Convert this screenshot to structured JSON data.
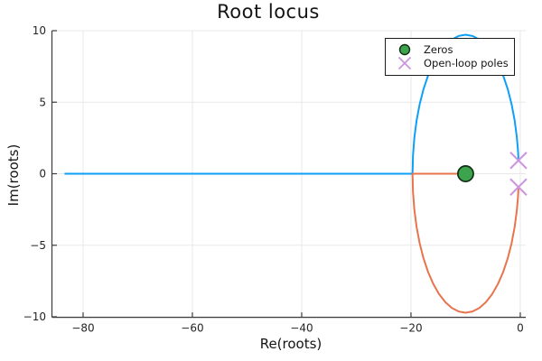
{
  "chart_data": {
    "type": "line",
    "title": "Root locus",
    "xlabel": "Re(roots)",
    "ylabel": "Im(roots)",
    "xlim": [
      -85.7,
      1.0
    ],
    "ylim": [
      -10,
      10
    ],
    "grid": true,
    "grid_color": "#e8e8e8",
    "axis_color": "#3c3c40",
    "legend_position": "top-right",
    "xticks": {
      "values": [
        -80,
        -60,
        -40,
        -20,
        0
      ],
      "labels": [
        "−80",
        "−60",
        "−40",
        "−20",
        "0"
      ]
    },
    "yticks": {
      "values": [
        -10,
        -5,
        0,
        5,
        10
      ],
      "labels": [
        "−10",
        "−5",
        "0",
        "5",
        "10"
      ]
    },
    "legend": {
      "entries": [
        {
          "label": "Zeros",
          "marker": "circle"
        },
        {
          "label": "Open-loop poles",
          "marker": "x"
        }
      ]
    },
    "annotations": {
      "zero_location": "-10 + 0i",
      "pole_locations": [
        "-0.33 + 0.93i",
        "-0.33 - 0.93i"
      ],
      "break_in_point": -19.72,
      "real_axis_extent": -83.4
    },
    "series": [
      {
        "id": "root-locus-branch-1",
        "type": "line",
        "color": "#0E9FF7",
        "stroke_width": 2,
        "points": [
          [
            -83.4,
            0
          ],
          [
            -19.715,
            0
          ],
          [
            -19.632,
            1.268
          ],
          [
            -19.384,
            2.514
          ],
          [
            -18.975,
            3.718
          ],
          [
            -18.413,
            4.857
          ],
          [
            -17.708,
            5.914
          ],
          [
            -16.87,
            6.869
          ],
          [
            -15.914,
            7.708
          ],
          [
            -14.857,
            8.413
          ],
          [
            -13.718,
            8.975
          ],
          [
            -12.514,
            9.384
          ],
          [
            -11.268,
            9.632
          ],
          [
            -10.0,
            9.715
          ],
          [
            -8.732,
            9.632
          ],
          [
            -7.486,
            9.384
          ],
          [
            -6.282,
            8.975
          ],
          [
            -5.143,
            8.413
          ],
          [
            -4.086,
            7.708
          ],
          [
            -3.13,
            6.869
          ],
          [
            -2.292,
            5.914
          ],
          [
            -1.587,
            4.857
          ],
          [
            -1.025,
            3.718
          ],
          [
            -0.616,
            2.514
          ],
          [
            -0.432,
            1.687
          ],
          [
            -0.368,
            1.268
          ],
          [
            -0.33,
            0.93
          ]
        ]
      },
      {
        "id": "root-locus-branch-2",
        "type": "line",
        "color": "#E7744D",
        "stroke_width": 2,
        "points": [
          [
            -0.33,
            -0.93
          ],
          [
            -0.368,
            -1.268
          ],
          [
            -0.432,
            -1.687
          ],
          [
            -0.616,
            -2.514
          ],
          [
            -1.025,
            -3.718
          ],
          [
            -1.587,
            -4.857
          ],
          [
            -2.292,
            -5.914
          ],
          [
            -3.13,
            -6.869
          ],
          [
            -4.086,
            -7.708
          ],
          [
            -5.143,
            -8.413
          ],
          [
            -6.282,
            -8.975
          ],
          [
            -7.486,
            -9.384
          ],
          [
            -8.732,
            -9.632
          ],
          [
            -10.0,
            -9.715
          ],
          [
            -11.268,
            -9.632
          ],
          [
            -12.514,
            -9.384
          ],
          [
            -13.718,
            -8.975
          ],
          [
            -14.857,
            -8.413
          ],
          [
            -15.914,
            -7.708
          ],
          [
            -16.87,
            -6.869
          ],
          [
            -17.708,
            -5.914
          ],
          [
            -18.413,
            -4.857
          ],
          [
            -18.975,
            -3.718
          ],
          [
            -19.384,
            -2.514
          ],
          [
            -19.632,
            -1.268
          ],
          [
            -19.715,
            0
          ],
          [
            -10.0,
            0
          ]
        ]
      },
      {
        "id": "zeros",
        "type": "scatter",
        "marker": "circle",
        "fill": "#3EA34D",
        "stroke": "#112e15",
        "stroke_width": 1.7,
        "size": 8.6,
        "points": [
          [
            -10,
            0
          ]
        ]
      },
      {
        "id": "open-loop-poles",
        "type": "scatter",
        "marker": "x",
        "stroke": "#CD95DF",
        "stroke_width": 2,
        "size": 9,
        "points": [
          [
            -0.33,
            0.93
          ],
          [
            -0.33,
            -0.93
          ]
        ]
      }
    ]
  }
}
